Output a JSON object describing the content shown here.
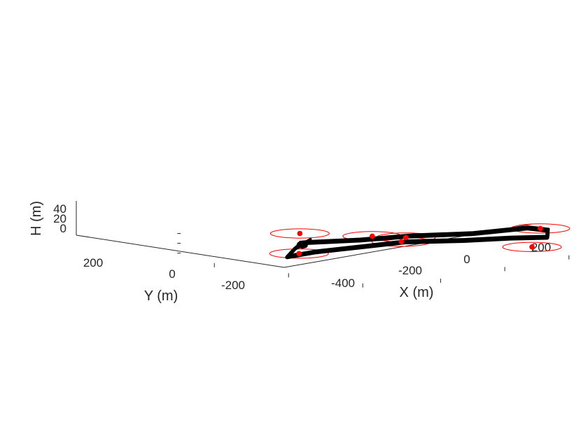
{
  "chart_data": {
    "type": "scatter3d",
    "axes": {
      "x": {
        "label": "X (m)",
        "ticks": [
          -400,
          -200,
          0,
          200
        ],
        "tick_labels": [
          "-400",
          "-200",
          "0",
          "200"
        ],
        "range": [
          -550,
          300
        ]
      },
      "y": {
        "label": "Y (m)",
        "ticks": [
          200,
          0,
          -200
        ],
        "tick_labels": [
          "200",
          "0",
          "-200"
        ],
        "range": [
          -280,
          300
        ]
      },
      "z": {
        "label": "H (m)",
        "ticks": [
          0,
          20,
          40
        ],
        "tick_labels": [
          "0",
          "20",
          "40"
        ],
        "range": [
          -10,
          50
        ]
      }
    },
    "colors": {
      "sensor": "#ff0000",
      "trajectory": "#000000",
      "axis": "#262626"
    },
    "sensors": [
      {
        "x": -338,
        "y": 153,
        "h": 30,
        "radius": 60
      },
      {
        "x": -440,
        "y": 67,
        "h": 10,
        "radius": 60
      },
      {
        "x": -150,
        "y": 30,
        "h": 12,
        "radius": 60
      },
      {
        "x": -220,
        "y": 60,
        "h": 20,
        "radius": 60
      },
      {
        "x": -40,
        "y": -215,
        "h": 5,
        "radius": 60
      },
      {
        "x": 32,
        "y": -175,
        "h": 30,
        "radius": 60
      },
      {
        "x": -245,
        "y": -40,
        "h": 22,
        "radius": 60
      }
    ],
    "trajectory": [
      [
        -468,
        75,
        5
      ],
      [
        -400,
        60,
        8
      ],
      [
        -300,
        25,
        10
      ],
      [
        -200,
        -10,
        12
      ],
      [
        -120,
        -100,
        15
      ],
      [
        -50,
        -165,
        18
      ],
      [
        -2,
        -223,
        20
      ],
      [
        20,
        -205,
        30
      ],
      [
        15,
        -155,
        30
      ],
      [
        -100,
        -105,
        27
      ],
      [
        -200,
        -20,
        25
      ],
      [
        -290,
        35,
        22
      ],
      [
        -385,
        95,
        22
      ],
      [
        -402,
        100,
        22
      ],
      [
        -416,
        90,
        21
      ],
      [
        -412,
        82,
        19
      ],
      [
        -400,
        84,
        19
      ],
      [
        -390,
        90,
        22
      ],
      [
        -360,
        108,
        22
      ],
      [
        -420,
        95,
        15
      ],
      [
        -468,
        75,
        5
      ]
    ]
  }
}
